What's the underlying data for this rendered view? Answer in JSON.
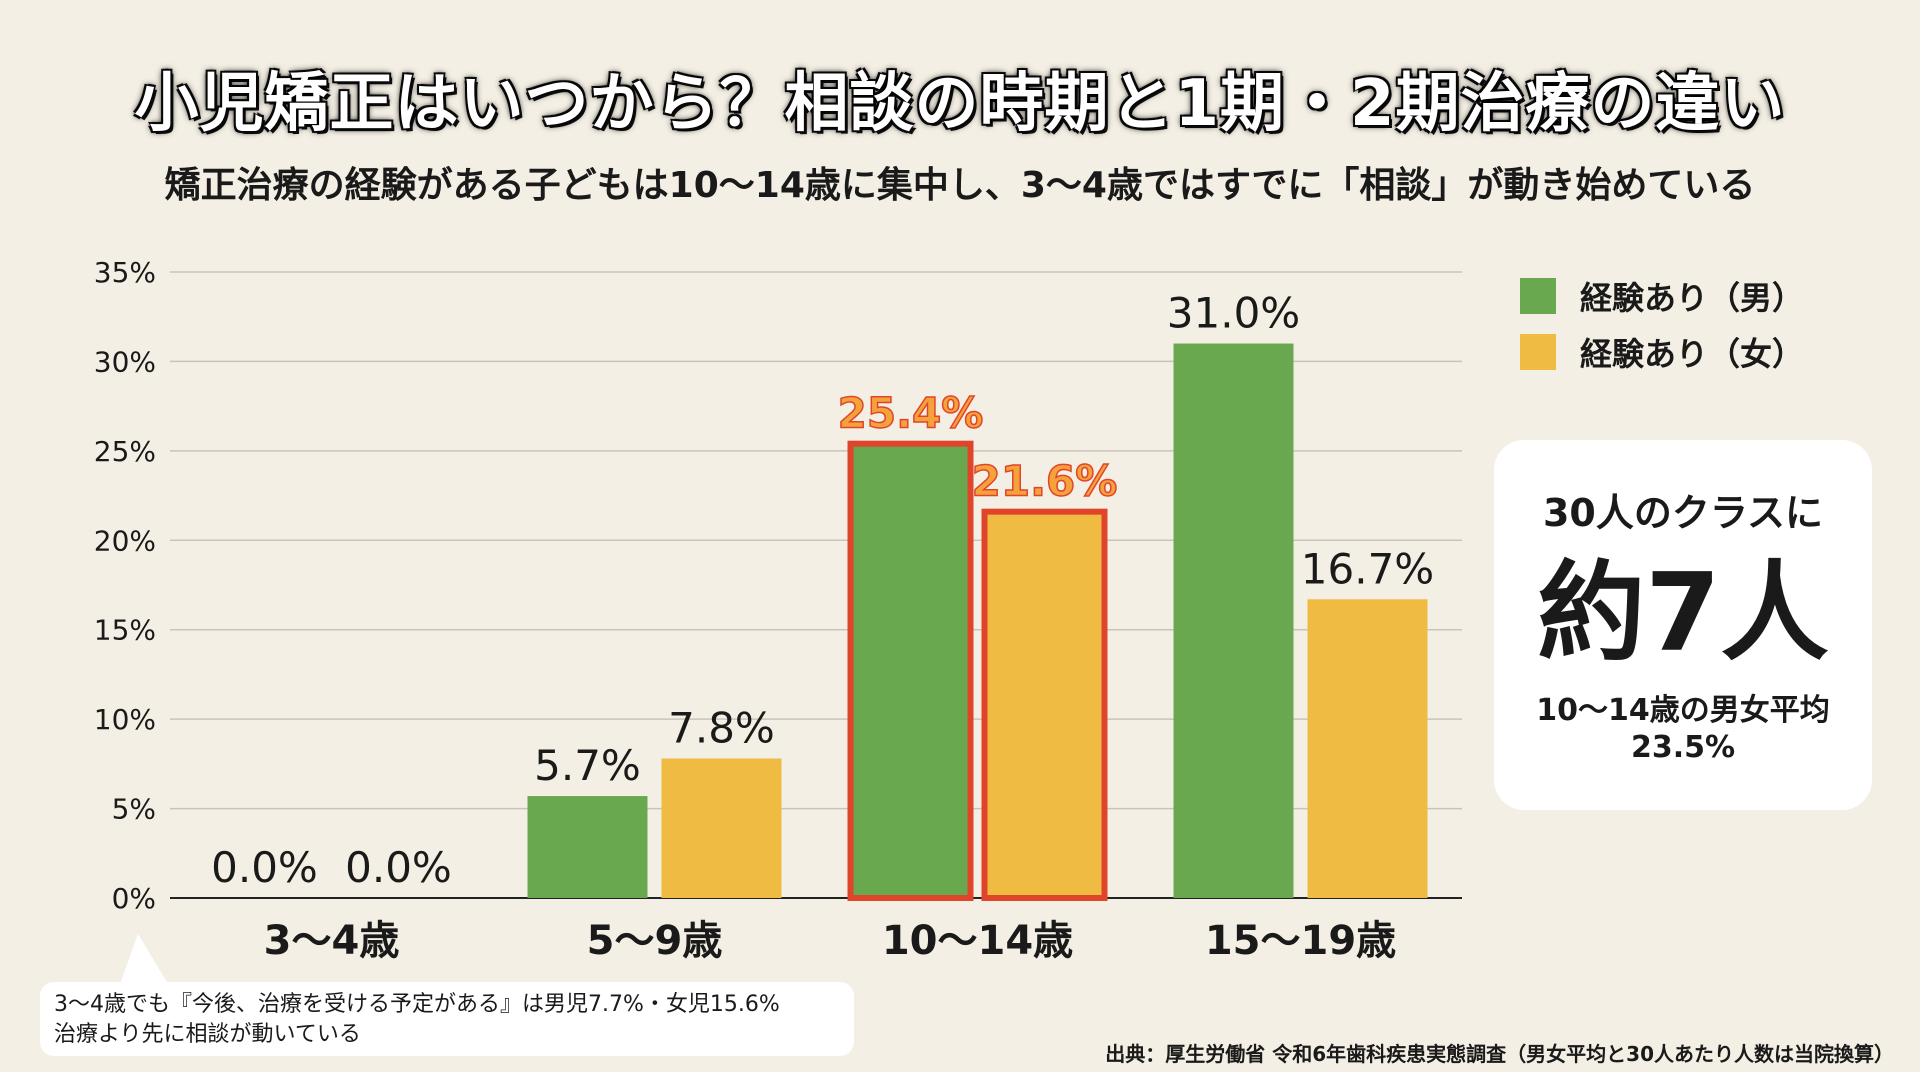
{
  "title": "小児矯正はいつから？相談の時期と1期・2期治療の違い",
  "subtitle": "矯正治療の経験がある子どもは10〜14歳に集中し、3〜4歳ではすでに「相談」が動き始めている",
  "colors": {
    "male": "#6aa84f",
    "female": "#f0bb42",
    "highlight": "#e0452c",
    "highlight_text": "#f5a23a"
  },
  "chart_data": {
    "type": "bar",
    "categories": [
      "3〜4歳",
      "5〜9歳",
      "10〜14歳",
      "15〜19歳"
    ],
    "series": [
      {
        "name": "経験あり（男）",
        "values": [
          0.0,
          5.7,
          25.4,
          31.0
        ],
        "labels": [
          "0.0%",
          "5.7%",
          "25.4%",
          "31.0%"
        ]
      },
      {
        "name": "経験あり（女）",
        "values": [
          0.0,
          7.8,
          21.6,
          16.7
        ],
        "labels": [
          "0.0%",
          "7.8%",
          "21.6%",
          "16.7%"
        ]
      }
    ],
    "highlighted_category": "10〜14歳",
    "ylim": [
      0,
      35
    ],
    "yticks": [
      "0%",
      "5%",
      "10%",
      "15%",
      "20%",
      "25%",
      "30%",
      "35%"
    ],
    "grid": true,
    "legend_position": "top-right"
  },
  "card": {
    "heading": "30人のクラスに",
    "big": "約7人",
    "note_line1": "10〜14歳の男女平均",
    "note_line2": "23.5%"
  },
  "callout": {
    "line1": "3〜4歳でも『今後、治療を受ける予定がある』は男児7.7%・女児15.6%",
    "line2": "治療より先に相談が動いている"
  },
  "source": "出典：厚生労働省 令和6年歯科疾患実態調査（男女平均と30人あたり人数は当院換算）"
}
